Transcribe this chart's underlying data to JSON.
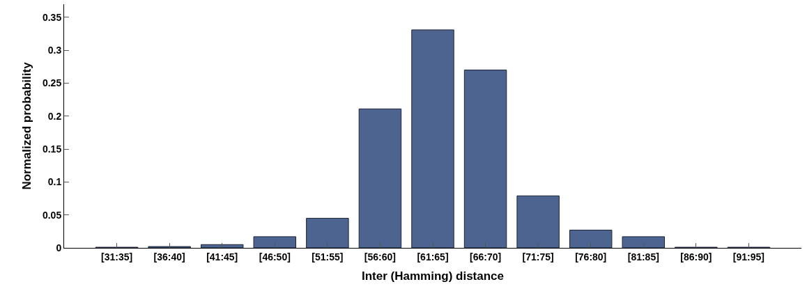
{
  "chart_data": {
    "type": "bar",
    "xlabel": "Inter (Hamming) distance",
    "ylabel": "Normalized probability",
    "categories": [
      "[31:35]",
      "[36:40]",
      "[41:45]",
      "[46:50]",
      "[51:55]",
      "[56:60]",
      "[61:65]",
      "[66:70]",
      "[71:75]",
      "[76:80]",
      "[81:85]",
      "[86:90]",
      "[91:95]"
    ],
    "values": [
      0.001,
      0.002,
      0.005,
      0.017,
      0.045,
      0.211,
      0.331,
      0.27,
      0.079,
      0.027,
      0.017,
      0.001,
      0.001
    ],
    "color": "#4d6491",
    "ylim": [
      0,
      0.37
    ],
    "yticks": [
      0,
      0.05,
      0.1,
      0.15,
      0.2,
      0.25,
      0.3,
      0.35
    ],
    "grid": false
  }
}
